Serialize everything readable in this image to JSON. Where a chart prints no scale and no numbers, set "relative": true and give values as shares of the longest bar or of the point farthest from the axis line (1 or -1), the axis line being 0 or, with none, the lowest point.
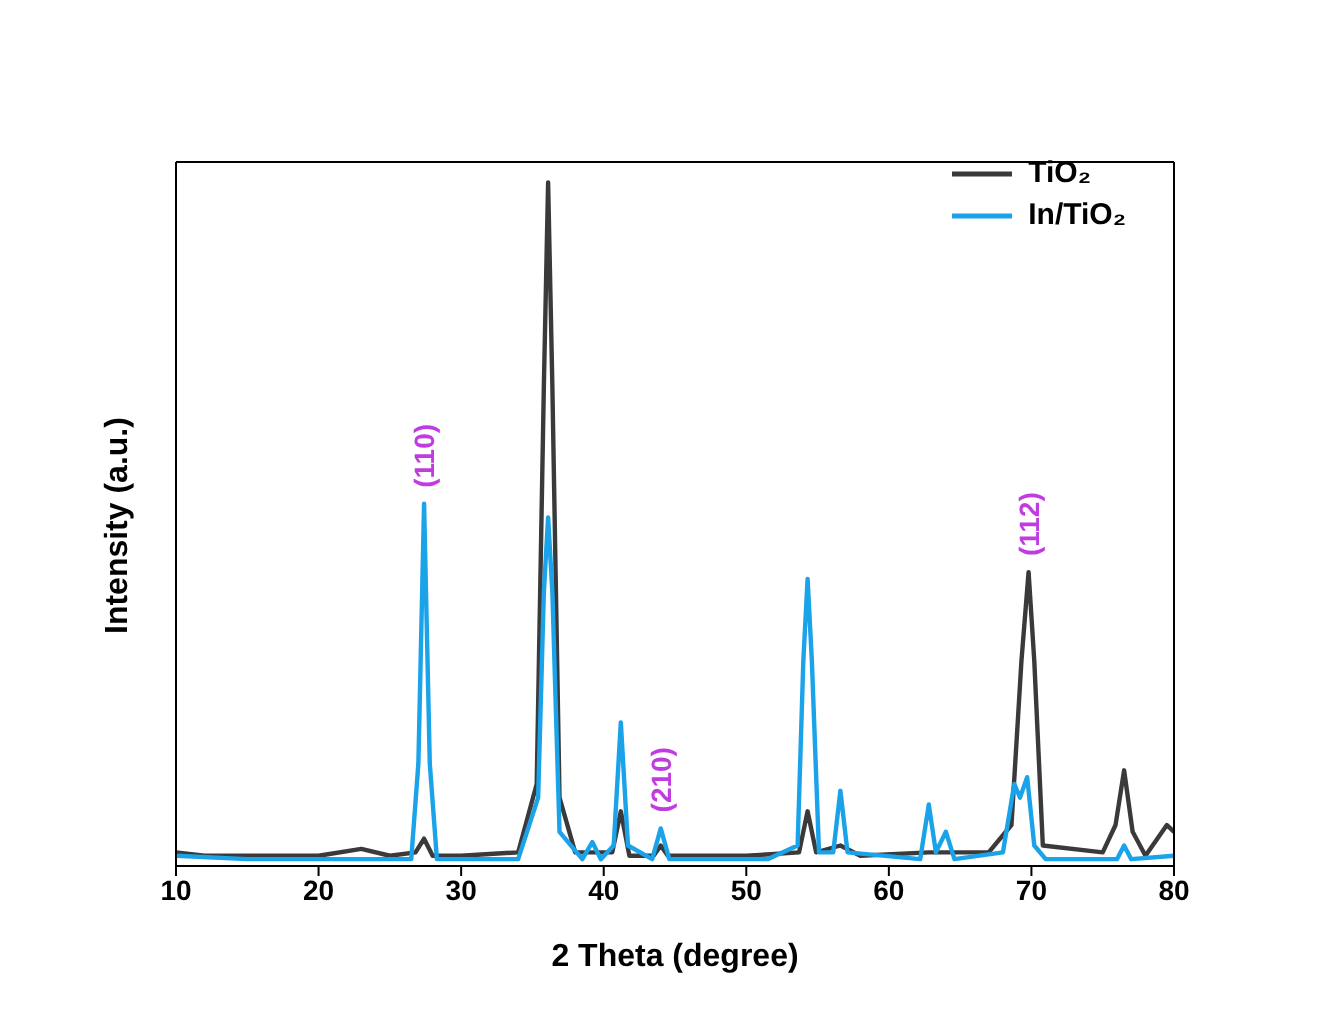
{
  "chart_data": {
    "type": "line",
    "relative": true,
    "xlabel": "2 Theta (degree)",
    "ylabel": "Intensity (a.u.)",
    "xlim": [
      10,
      80
    ],
    "xticks": [
      10,
      20,
      30,
      40,
      50,
      60,
      70,
      80
    ],
    "legend": "top right",
    "marker": "none",
    "line_style": "solid",
    "grid": false,
    "series": [
      {
        "name": "TiO₂",
        "color": "#3a3a3a",
        "x": [
          10,
          12,
          15,
          20,
          23,
          25,
          26.8,
          27.4,
          28,
          30,
          34,
          35.3,
          35.8,
          36.1,
          36.4,
          36.9,
          38,
          40.6,
          41.2,
          41.8,
          43.5,
          44,
          44.5,
          50,
          53.7,
          54.3,
          54.9,
          56.6,
          58,
          62.8,
          64,
          67,
          68.6,
          69.3,
          69.8,
          70.2,
          70.8,
          75,
          75.9,
          76.5,
          77.1,
          78,
          79.5,
          80
        ],
        "values": [
          0.02,
          0.015,
          0.015,
          0.015,
          0.025,
          0.015,
          0.02,
          0.04,
          0.015,
          0.015,
          0.02,
          0.12,
          0.7,
          1,
          0.7,
          0.1,
          0.02,
          0.02,
          0.08,
          0.015,
          0.015,
          0.03,
          0.015,
          0.015,
          0.02,
          0.08,
          0.02,
          0.03,
          0.015,
          0.02,
          0.02,
          0.02,
          0.06,
          0.3,
          0.43,
          0.3,
          0.03,
          0.02,
          0.06,
          0.14,
          0.05,
          0.015,
          0.06,
          0.05
        ]
      },
      {
        "name": "In/TiO₂",
        "color": "#1aa3e8",
        "x": [
          10,
          15,
          20,
          26.5,
          27,
          27.4,
          27.8,
          28.3,
          34,
          35.4,
          35.8,
          36.1,
          36.4,
          36.9,
          38.5,
          39.2,
          39.8,
          40.7,
          41.2,
          41.7,
          43.4,
          44,
          44.6,
          51.5,
          53.6,
          54,
          54.3,
          54.6,
          55.1,
          56.1,
          56.6,
          57.1,
          62.2,
          62.8,
          63.3,
          64,
          64.6,
          68,
          68.8,
          69.2,
          69.7,
          70.2,
          71,
          76,
          76.5,
          77,
          80
        ],
        "values": [
          0.015,
          0.01,
          0.01,
          0.01,
          0.15,
          0.53,
          0.15,
          0.01,
          0.01,
          0.1,
          0.4,
          0.51,
          0.4,
          0.05,
          0.01,
          0.035,
          0.01,
          0.03,
          0.21,
          0.03,
          0.01,
          0.055,
          0.01,
          0.01,
          0.03,
          0.3,
          0.42,
          0.3,
          0.02,
          0.02,
          0.11,
          0.02,
          0.01,
          0.09,
          0.02,
          0.05,
          0.01,
          0.02,
          0.12,
          0.1,
          0.13,
          0.03,
          0.01,
          0.01,
          0.03,
          0.01,
          0.015
        ]
      }
    ],
    "annotations": [
      {
        "text": "(110)",
        "x": 27.4,
        "y": 0.53
      },
      {
        "text": "(210)",
        "x": 44,
        "y": 0.055
      },
      {
        "text": "(112)",
        "x": 69.8,
        "y": 0.43
      }
    ]
  }
}
